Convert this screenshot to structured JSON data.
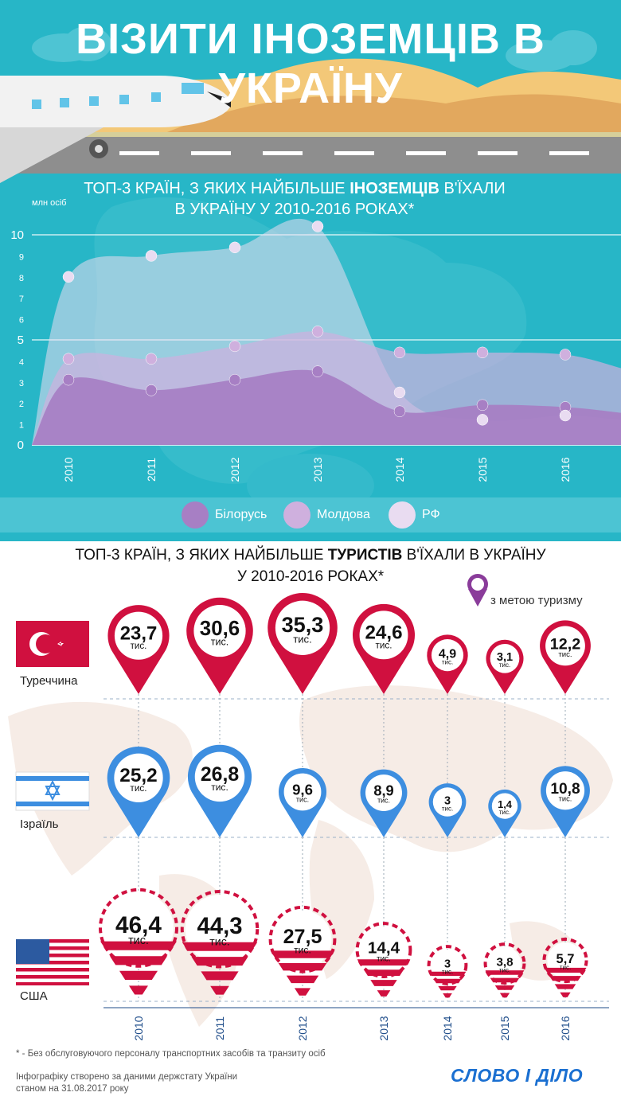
{
  "title": "ВІЗИТИ ІНОЗЕМЦІВ В УКРАЇНУ",
  "chart_data": [
    {
      "type": "area",
      "title_prefix": "ТОП-3 КРАЇН, З ЯКИХ НАЙБІЛЬШЕ ",
      "title_bold": "ІНОЗЕМЦІВ",
      "title_suffix": " В'ЇХАЛИ",
      "title_line2": "В УКРАЇНУ У 2010-2016 РОКАХ*",
      "ylabel": "млн осіб",
      "ylim": [
        0,
        11
      ],
      "yticks": [
        "0",
        "1",
        "2",
        "3",
        "4",
        "5",
        "6",
        "7",
        "8",
        "9",
        "10",
        "11"
      ],
      "categories": [
        "2010",
        "2011",
        "2012",
        "2013",
        "2014",
        "2015",
        "2016"
      ],
      "series": [
        {
          "name": "Білорусь",
          "color": "#a77fc4",
          "values": [
            3.1,
            2.6,
            3.1,
            3.5,
            1.6,
            1.9,
            1.8
          ]
        },
        {
          "name": "Молдова",
          "color": "#cfb0de",
          "values": [
            4.1,
            4.1,
            4.7,
            5.4,
            4.4,
            4.4,
            4.3
          ]
        },
        {
          "name": "РФ",
          "color": "#e9dcf1",
          "values": [
            8.0,
            9.0,
            9.4,
            10.4,
            2.5,
            1.2,
            1.4
          ]
        }
      ]
    },
    {
      "type": "bubble",
      "title_prefix": "ТОП-3 КРАЇН, З ЯКИХ НАЙБІЛЬШЕ ",
      "title_bold": "ТУРИСТІВ",
      "title_suffix": " В'ЇХАЛИ В УКРАЇНУ",
      "title_line2": "У 2010-2016 РОКАХ*",
      "legend_label": "з метою туризму",
      "unit": "тис.",
      "categories": [
        "2010",
        "2011",
        "2012",
        "2013",
        "2014",
        "2015",
        "2016"
      ],
      "series": [
        {
          "name": "Туреччина",
          "color": "#d0103f",
          "values": [
            23.7,
            30.6,
            35.3,
            24.6,
            4.9,
            3.1,
            12.2
          ],
          "labels": [
            "23,7",
            "30,6",
            "35,3",
            "24,6",
            "4,9",
            "3,1",
            "12,2"
          ]
        },
        {
          "name": "Ізраїль",
          "color": "#3d8ee0",
          "values": [
            25.2,
            26.8,
            9.6,
            8.9,
            3,
            1.4,
            10.8
          ],
          "labels": [
            "25,2",
            "26,8",
            "9,6",
            "8,9",
            "3",
            "1,4",
            "10,8"
          ]
        },
        {
          "name": "США",
          "color": "#d0103f",
          "values": [
            46.4,
            44.3,
            27.5,
            14.4,
            3,
            3.8,
            5.7
          ],
          "labels": [
            "46,4",
            "44,3",
            "27,5",
            "14,4",
            "3",
            "3,8",
            "5,7"
          ]
        }
      ]
    }
  ],
  "footnote": "* - Без обслуговуючого персоналу транспортних засобів та транзиту осіб",
  "source_line1": "Інфографіку створено за даними держстату України",
  "source_line2": "станом на 31.08.2017 року",
  "brand": "СЛОВО І ДІЛО"
}
